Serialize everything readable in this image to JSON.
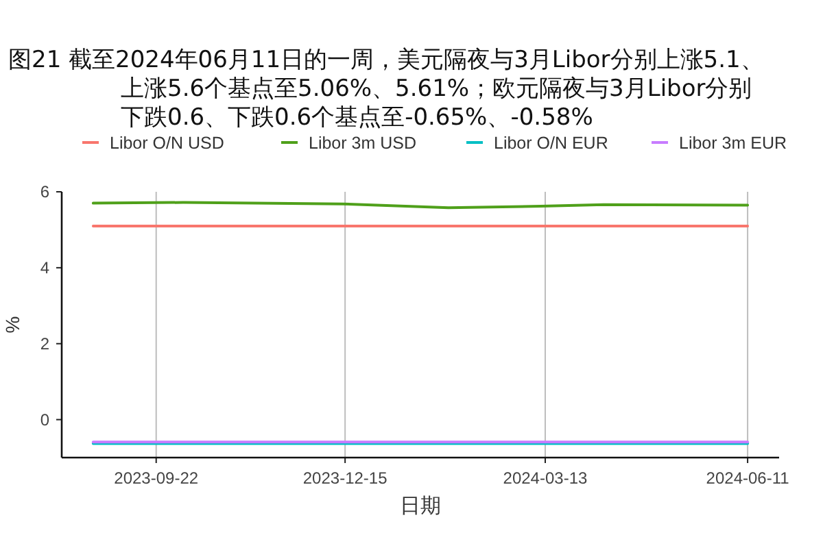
{
  "chart_data": {
    "type": "line",
    "title": "图21  截至2024年06月11日的一周，美元隔夜与3月Libor分别上涨5.1、上涨5.6个基点至5.06%、5.61%；欧元隔夜与3月Libor分别下跌0.6、下跌0.6个基点至-0.65%、-0.58%",
    "xlabel": "日期",
    "ylabel": "%",
    "xlim": [
      "2023-08-11",
      "2024-06-25"
    ],
    "ylim": [
      -1,
      6
    ],
    "xticks": [
      "2023-09-22",
      "2023-12-15",
      "2024-03-13",
      "2024-06-11"
    ],
    "yticks": [
      0,
      2,
      4,
      6
    ],
    "grid": "x",
    "legend": "top",
    "line_style": "solid",
    "marker": "none",
    "series": [
      {
        "name": "Libor O/N USD",
        "color": "#f8766d",
        "x": [
          "2023-08-25",
          "2024-06-11"
        ],
        "values": [
          5.1,
          5.1
        ]
      },
      {
        "name": "Libor 3m USD",
        "color": "#4fa01a",
        "x": [
          "2023-08-25",
          "2023-10-04",
          "2023-12-14",
          "2024-01-30",
          "2024-03-11",
          "2024-04-08",
          "2024-06-11"
        ],
        "values": [
          5.7,
          5.72,
          5.68,
          5.58,
          5.62,
          5.66,
          5.65
        ]
      },
      {
        "name": "Libor O/N EUR",
        "color": "#00bfc4",
        "x": [
          "2023-08-25",
          "2024-06-11"
        ],
        "values": [
          -0.63,
          -0.63
        ]
      },
      {
        "name": "Libor 3m EUR",
        "color": "#c77cff",
        "x": [
          "2023-08-25",
          "2024-06-11"
        ],
        "values": [
          -0.59,
          -0.59
        ]
      }
    ]
  }
}
